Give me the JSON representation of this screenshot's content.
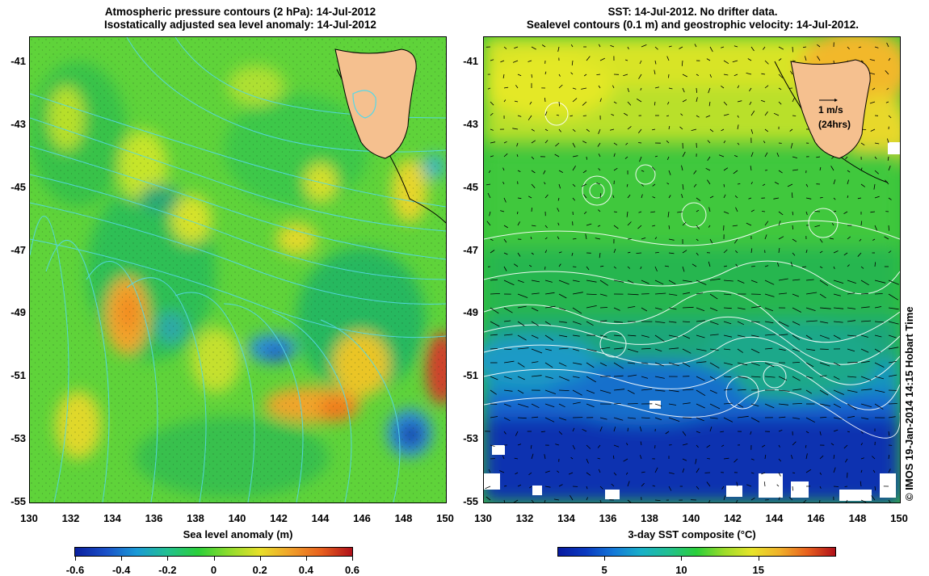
{
  "left_map": {
    "title_line1": "Atmospheric pressure contours (2 hPa): 14-Jul-2012",
    "title_line2": "Isostatically adjusted sea level anomaly: 14-Jul-2012",
    "x_label": "Sea level anomaly (m)",
    "colorbar_ticks": [
      "-0.6",
      "-0.4",
      "-0.2",
      "0",
      "0.2",
      "0.4",
      "0.6"
    ],
    "colorbar_range": [
      -0.6,
      0.6
    ],
    "colors": {
      "low": "#0a1f9e",
      "mid": "#2bcf3a",
      "high": "#b0101a",
      "contour": "#56d8e8",
      "land": "#f5c08f"
    }
  },
  "right_map": {
    "title_line1": "SST: 14-Jul-2012. No drifter data.",
    "title_line2": "Sealevel contours (0.1 m) and geostrophic velocity: 14-Jul-2012.",
    "x_label": "3-day SST composite (°C)",
    "colorbar_ticks": [
      "5",
      "10",
      "15"
    ],
    "colorbar_range": [
      2,
      20
    ],
    "velocity_scale_label": "1 m/s",
    "velocity_scale_sub": "(24hrs)",
    "colors": {
      "cold": "#0a2aa8",
      "mid": "#2bcf3a",
      "warm": "#f5e80f",
      "contour": "#ffffff",
      "land": "#f5c08f"
    }
  },
  "axes": {
    "lat_ticks": [
      "-41",
      "-43",
      "-45",
      "-47",
      "-49",
      "-51",
      "-53",
      "-55"
    ],
    "lon_ticks": [
      "130",
      "132",
      "134",
      "136",
      "138",
      "140",
      "142",
      "144",
      "146",
      "148",
      "150"
    ],
    "lat_range": [
      -55,
      -40.2
    ],
    "lon_range": [
      130,
      150
    ]
  },
  "credit": "© IMOS 19-Jan-2014 14:15 Hobart Time"
}
